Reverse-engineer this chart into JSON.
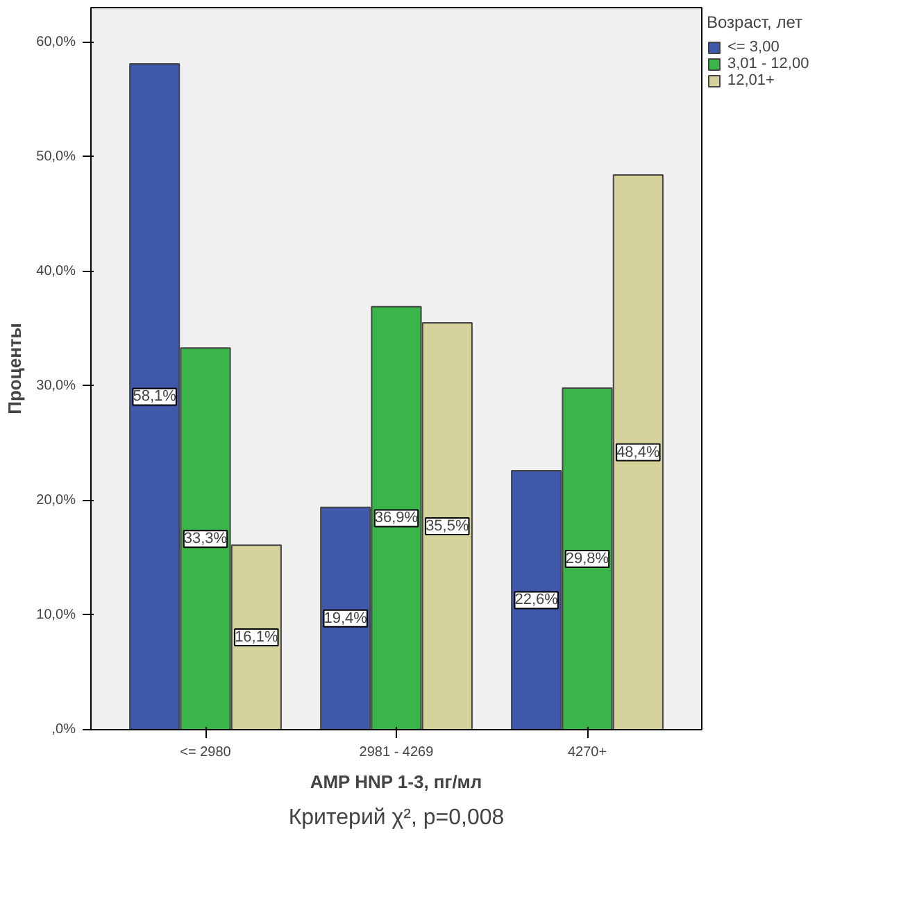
{
  "chart_data": {
    "type": "bar",
    "xlabel": "AMP HNP 1-3, пг/мл",
    "ylabel": "Проценты",
    "legend_title": "Возраст, лет",
    "categories": [
      "<= 2980",
      "2981 - 4269",
      "4270+"
    ],
    "series": [
      {
        "name": "<= 3,00",
        "color": "#3f58aa",
        "values": [
          58.1,
          19.4,
          22.6
        ],
        "value_labels": [
          "58,1%",
          "19,4%",
          "22,6%"
        ]
      },
      {
        "name": "3,01 - 12,00",
        "color": "#3ab54a",
        "values": [
          33.3,
          36.9,
          29.8
        ],
        "value_labels": [
          "33,3%",
          "36,9%",
          "29,8%"
        ]
      },
      {
        "name": "12,01+",
        "color": "#d5d39b",
        "values": [
          16.1,
          35.5,
          48.4
        ],
        "value_labels": [
          "16,1%",
          "35,5%",
          "48,4%"
        ]
      }
    ],
    "ylim": [
      0,
      63
    ],
    "yticks": [
      {
        "value": 0,
        "label": ",0%"
      },
      {
        "value": 10,
        "label": "10,0%"
      },
      {
        "value": 20,
        "label": "20,0%"
      },
      {
        "value": 30,
        "label": "30,0%"
      },
      {
        "value": 40,
        "label": "40,0%"
      },
      {
        "value": 50,
        "label": "50,0%"
      },
      {
        "value": 60,
        "label": "60,0%"
      }
    ],
    "grid": false,
    "legend": "right",
    "annotations": [
      "Критерий χ², p=0,008"
    ]
  }
}
